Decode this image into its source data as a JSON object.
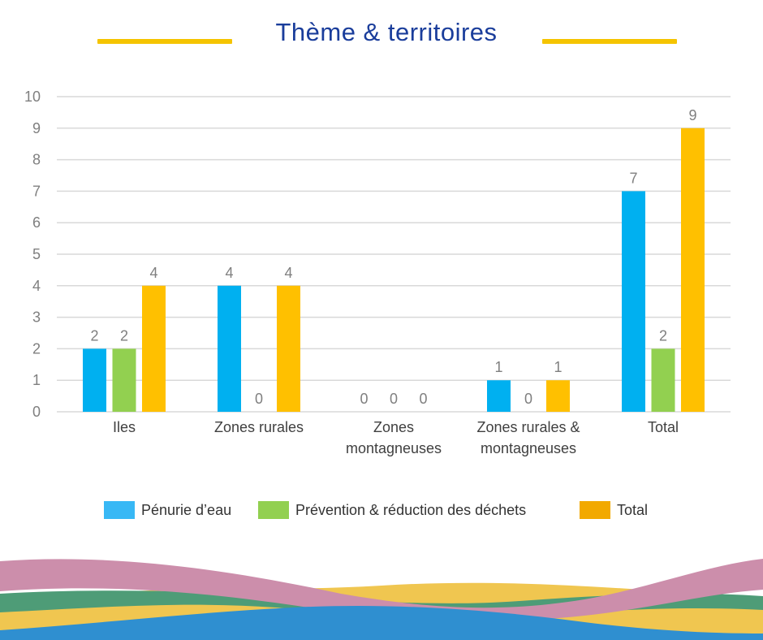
{
  "title": "Thème & territoires",
  "colors": {
    "title": "#1a3d9b",
    "title_lines": "#f5c400",
    "grid": "#d9d9d9",
    "tick_text": "#7f7f7f",
    "label_text": "#404040"
  },
  "legend": [
    {
      "label": "Pénurie d’eau",
      "color": "#38b8f5"
    },
    {
      "label": "Prévention & réduction des déchets",
      "color": "#92d050"
    },
    {
      "label": "Total",
      "color": "#f2a900"
    }
  ],
  "chart_data": {
    "type": "bar",
    "title": "Thème & territoires",
    "categories": [
      [
        "Iles"
      ],
      [
        "Zones rurales"
      ],
      [
        "Zones",
        "montagneuses"
      ],
      [
        "Zones rurales &",
        "montagneuses"
      ],
      [
        "Total"
      ]
    ],
    "series": [
      {
        "name": "Pénurie d’eau",
        "color": "#00b0f0",
        "values": [
          2,
          4,
          0,
          1,
          7
        ]
      },
      {
        "name": "Prévention & réduction des déchets",
        "color": "#92d050",
        "values": [
          2,
          0,
          0,
          0,
          2
        ]
      },
      {
        "name": "Total",
        "color": "#ffc000",
        "values": [
          4,
          4,
          0,
          1,
          9
        ]
      }
    ],
    "data_labels": [
      [
        "2",
        "2",
        "4"
      ],
      [
        "4",
        "0",
        "4"
      ],
      [
        "0",
        "0",
        "0"
      ],
      [
        "1",
        "0",
        "1"
      ],
      [
        "7",
        "2",
        "9"
      ]
    ],
    "ylim": [
      0,
      10
    ],
    "yticks": [
      0,
      1,
      2,
      3,
      4,
      5,
      6,
      7,
      8,
      9,
      10
    ],
    "grid": true,
    "legend_position": "bottom",
    "xlabel": "",
    "ylabel": ""
  }
}
